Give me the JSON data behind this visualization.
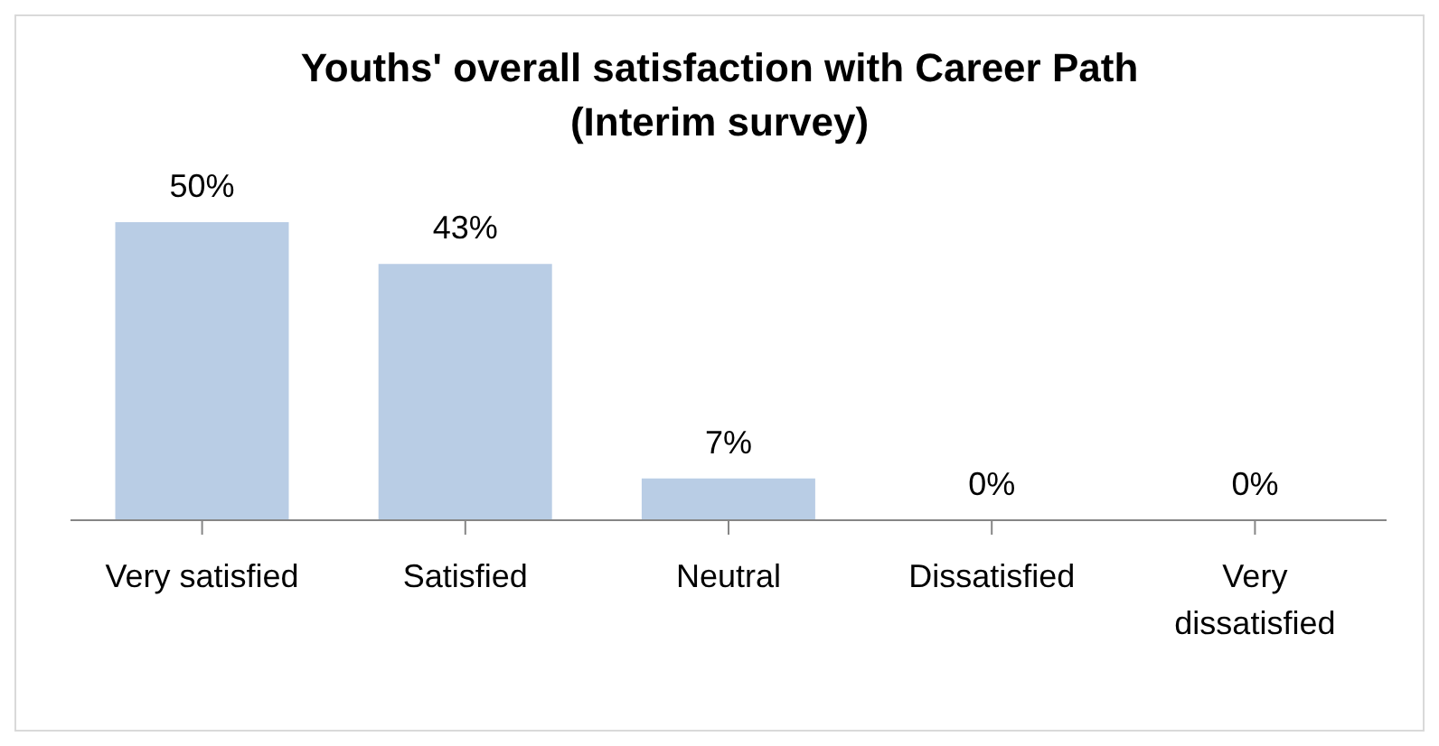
{
  "chart_data": {
    "type": "bar",
    "title": "Youths' overall satisfaction with Career Path (Interim survey)",
    "categories": [
      "Very satisfied",
      "Satisfied",
      "Neutral",
      "Dissatisfied",
      "Very dissatisfied"
    ],
    "values": [
      50,
      43,
      7,
      0,
      0
    ],
    "value_labels": [
      "50%",
      "43%",
      "7%",
      "0%",
      "0%"
    ],
    "color": "#b9cde5",
    "grid": false,
    "legend": false
  }
}
